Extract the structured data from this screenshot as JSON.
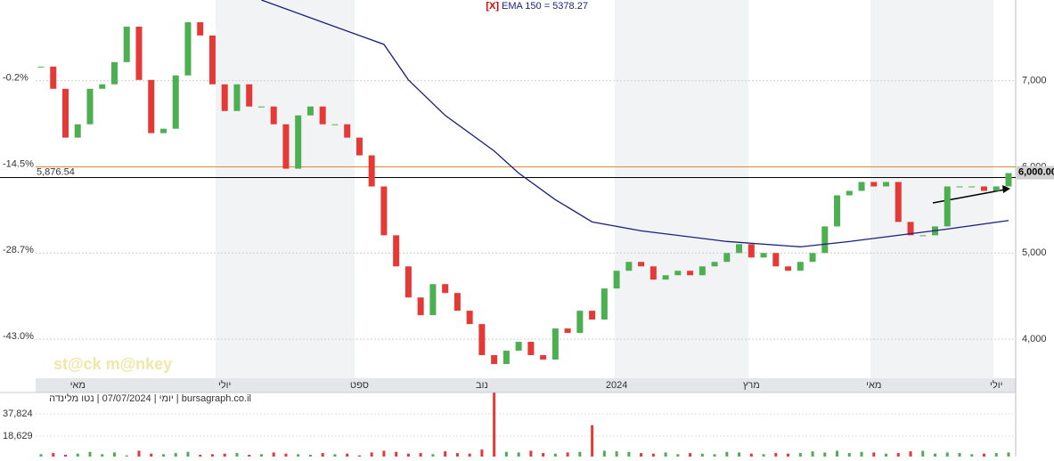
{
  "chart_data": {
    "type": "candlestick",
    "title_tag": "[X]",
    "title": "EMA 150 = 5378.27",
    "close": [
      7165,
      6907,
      6340,
      6495,
      6907,
      6959,
      7217,
      7629,
      7010,
      6392,
      6443,
      7062,
      7680,
      7526,
      6959,
      6649,
      6959,
      6701,
      6701,
      6495,
      5979,
      6598,
      6701,
      6495,
      6495,
      6340,
      6134,
      5773,
      5206,
      4845,
      4484,
      4278,
      4639,
      4536,
      4330,
      4175,
      3814,
      3711,
      3866,
      3969,
      3814,
      3763,
      4124,
      4072,
      4330,
      4227,
      4588,
      4794,
      4897,
      4845,
      4691,
      4742,
      4794,
      4742,
      4845,
      4897,
      5000,
      5103,
      4948,
      5000,
      4845,
      4794,
      4897,
      5000,
      5309,
      5670,
      5722,
      5825,
      5773,
      5825,
      5361,
      5206,
      5206,
      5309,
      5773,
      5773,
      5773,
      5722,
      5773,
      5928
    ],
    "up_color": "#4caf50",
    "down_color": "#e53935",
    "ema": {
      "name": "EMA 150",
      "color": "#1a1f7a",
      "x": [
        18,
        23,
        28,
        30,
        33,
        37,
        39,
        42,
        45,
        49,
        56,
        62,
        66,
        70,
        74,
        79
      ],
      "values": [
        7938,
        7680,
        7423,
        7010,
        6598,
        6185,
        5928,
        5619,
        5361,
        5258,
        5134,
        5072,
        5134,
        5206,
        5278,
        5378
      ]
    },
    "ylim": [
      3546,
      7938
    ],
    "yticks": [
      {
        "value": 4000,
        "label": "4,000"
      },
      {
        "value": 5000,
        "label": "5,000"
      },
      {
        "value": 6000,
        "label": "6,000"
      },
      {
        "value": 7000,
        "label": "7,000"
      }
    ],
    "left_ticks": [
      {
        "value": 7000,
        "label": "-0.2%"
      },
      {
        "value": 6000,
        "label": "-14.5%"
      },
      {
        "value": 5000,
        "label": "-28.7%"
      },
      {
        "value": 4000,
        "label": "-43.0%"
      }
    ],
    "price_marker": {
      "value": 6000,
      "label": "6,000.00"
    },
    "resistance": {
      "value": 6000,
      "color": "#d98a3a"
    },
    "hline": {
      "value": 5876.54,
      "label": "5,876.54"
    },
    "xticks": [
      {
        "value": 3,
        "label": "מאי"
      },
      {
        "value": 15,
        "label": "יולי"
      },
      {
        "value": 26,
        "label": "ספט"
      },
      {
        "value": 36,
        "label": "נוב"
      },
      {
        "value": 47,
        "label": "2024"
      },
      {
        "value": 58,
        "label": "מרץ"
      },
      {
        "value": 68,
        "label": "מאי"
      },
      {
        "value": 78,
        "label": "יולי"
      }
    ],
    "volume": {
      "values": [
        3000,
        4000,
        2500,
        3500,
        5000,
        3000,
        4500,
        2000,
        6000,
        3500,
        3000,
        4000,
        5000,
        2500,
        3000,
        3500,
        4000,
        2500,
        3000,
        4500,
        3500,
        3000,
        2500,
        4000,
        3000,
        3500,
        2000,
        4500,
        6000,
        5000,
        3500,
        4000,
        3000,
        5500,
        4000,
        3500,
        7000,
        56000,
        5000,
        4500,
        6000,
        4000,
        3500,
        4500,
        5000,
        28000,
        6000,
        5500,
        5000,
        4000,
        3500,
        4500,
        3000,
        4000,
        3500,
        3000,
        5000,
        4500,
        3500,
        3000,
        4000,
        3500,
        4000,
        5500,
        4500,
        6000,
        4000,
        5000,
        4500,
        3500,
        4000,
        5500,
        6000,
        3500,
        4500,
        4000,
        3000,
        3500,
        4000,
        4500
      ],
      "ylim": [
        972,
        56251
      ],
      "yticks": [
        {
          "value": 18629,
          "label": "18,629"
        },
        {
          "value": 37824,
          "label": "37,824"
        }
      ]
    },
    "footer": "יומי | 07/07/2024 | נטו מלינדה | bursagraph.co.il",
    "watermark": "st@ck m@nkey"
  }
}
